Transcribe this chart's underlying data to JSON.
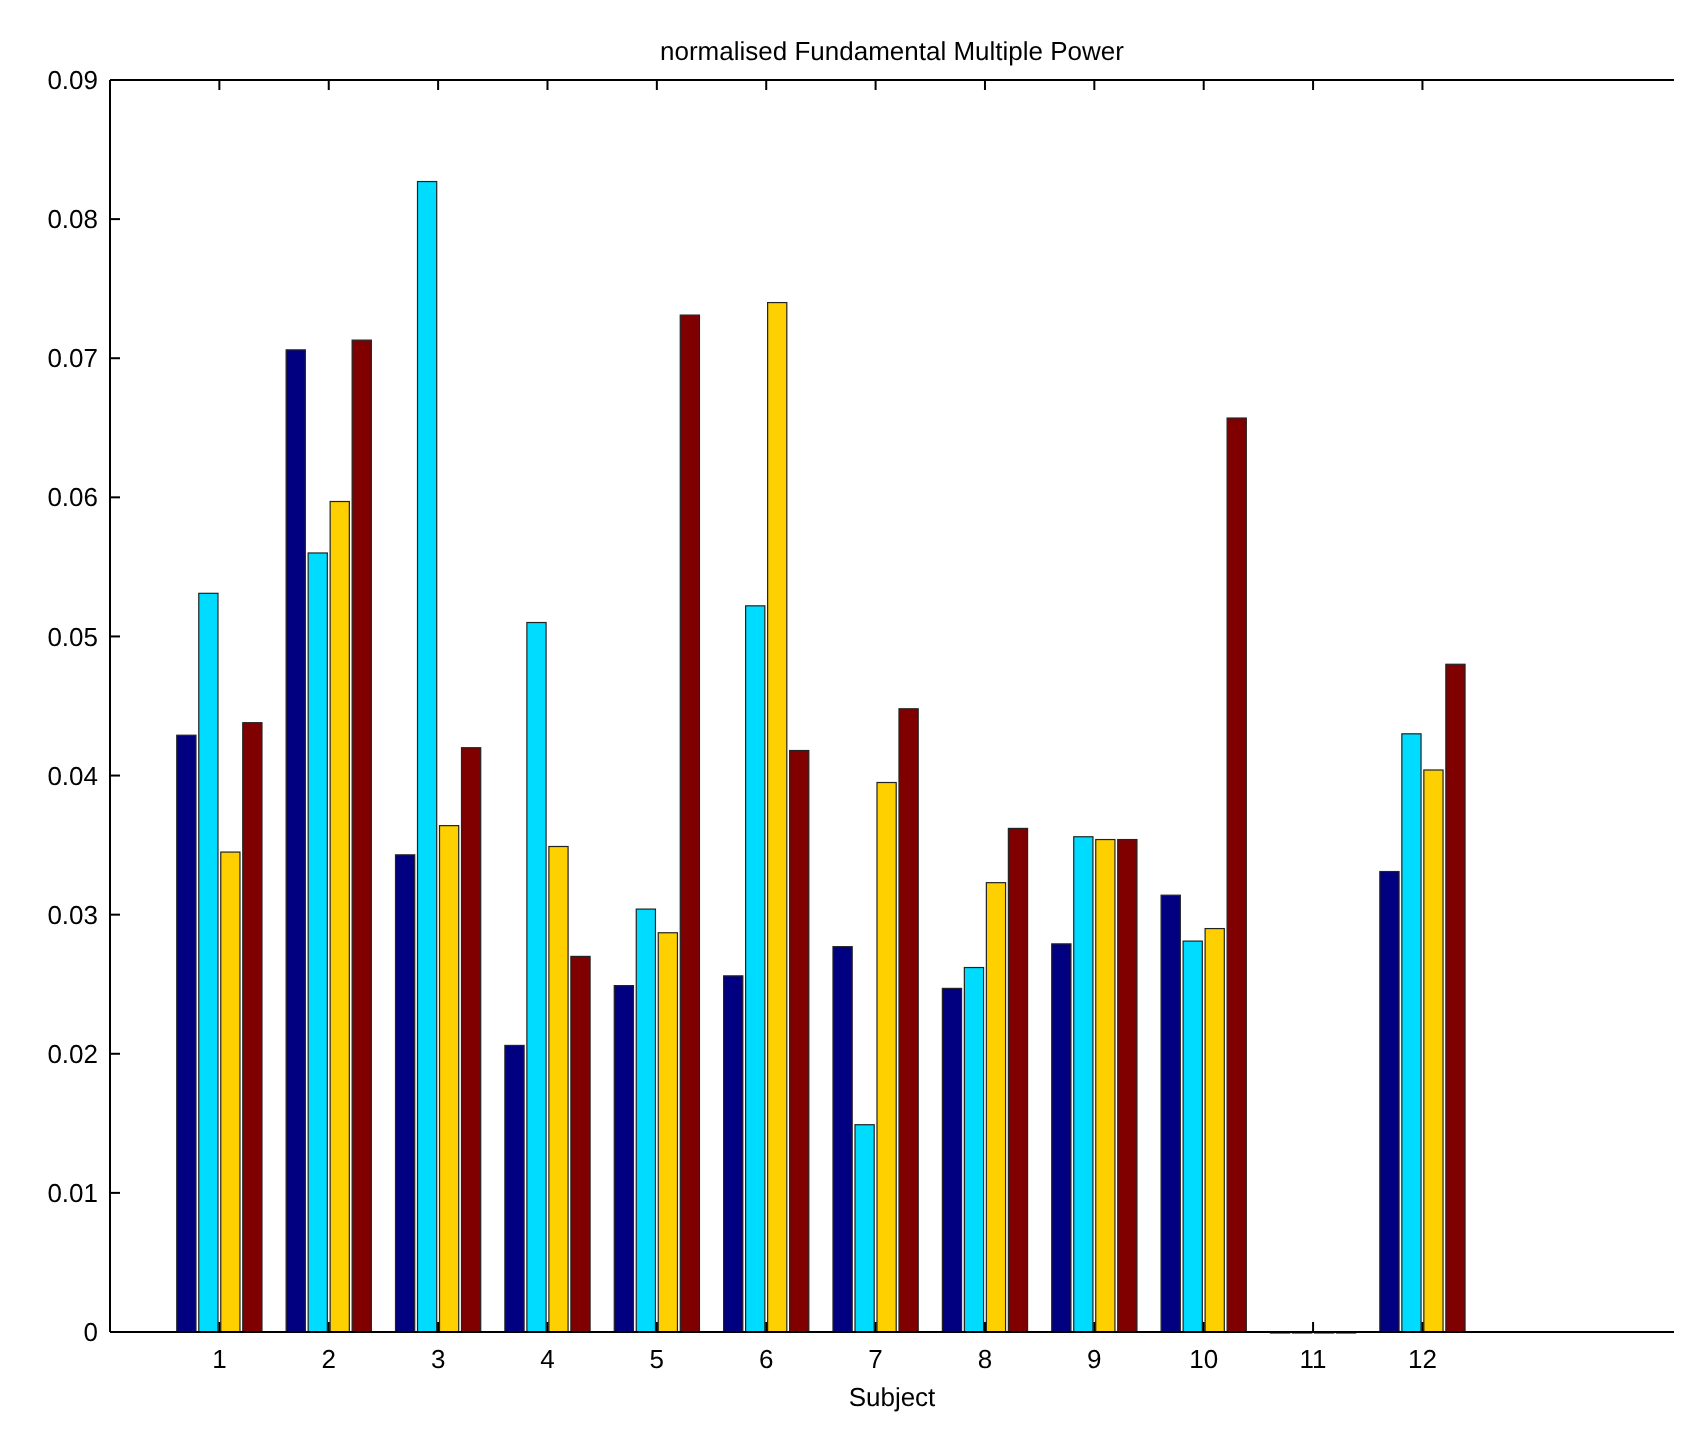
{
  "chart_data": {
    "type": "bar",
    "title": "normalised Fundamental Multiple Power",
    "xlabel": "Subject",
    "x": [
      1,
      2,
      3,
      4,
      5,
      6,
      7,
      8,
      9,
      10,
      11,
      12
    ],
    "xlim": [
      0,
      14.3
    ],
    "xticks": [
      1,
      2,
      3,
      4,
      5,
      6,
      7,
      8,
      9,
      10,
      11,
      12
    ],
    "ylim": [
      0,
      0.09
    ],
    "yticks": [
      0,
      0.01,
      0.02,
      0.03,
      0.04,
      0.05,
      0.06,
      0.07,
      0.08,
      0.09
    ],
    "series": [
      {
        "color": "#000080",
        "values": [
          0.0429,
          0.0706,
          0.0343,
          0.0206,
          0.0249,
          0.0256,
          0.0277,
          0.0247,
          0.0279,
          0.0314,
          0,
          0.0331
        ]
      },
      {
        "color": "#00dcff",
        "values": [
          0.0531,
          0.056,
          0.0827,
          0.051,
          0.0304,
          0.0522,
          0.0149,
          0.0262,
          0.0356,
          0.0281,
          0,
          0.043
        ]
      },
      {
        "color": "#ffd000",
        "values": [
          0.0345,
          0.0597,
          0.0364,
          0.0349,
          0.0287,
          0.074,
          0.0395,
          0.0323,
          0.0354,
          0.029,
          0,
          0.0404
        ]
      },
      {
        "color": "#800000",
        "values": [
          0.0438,
          0.0713,
          0.042,
          0.027,
          0.0731,
          0.0418,
          0.0448,
          0.0362,
          0.0354,
          0.0657,
          0,
          0.048
        ]
      }
    ],
    "grid": false
  }
}
